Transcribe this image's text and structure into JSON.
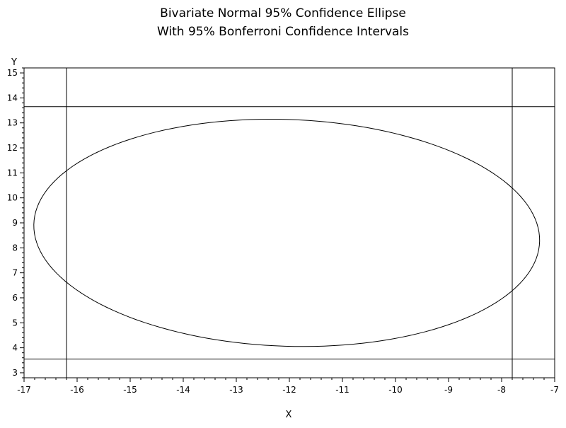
{
  "chart_data": {
    "type": "line",
    "title": [
      "Bivariate Normal 95% Confidence Ellipse",
      "With 95% Bonferroni Confidence Intervals"
    ],
    "xlabel": "X",
    "ylabel": "Y",
    "xlim": [
      -17,
      -7
    ],
    "ylim": [
      2.8,
      15.2
    ],
    "x_ticks": [
      "-17",
      "-16",
      "-15",
      "-14",
      "-13",
      "-12",
      "-11",
      "-10",
      "-9",
      "-8",
      "-7"
    ],
    "y_ticks": [
      "3",
      "4",
      "5",
      "6",
      "7",
      "8",
      "9",
      "10",
      "11",
      "12",
      "13",
      "14",
      "15"
    ],
    "x_tick_values": [
      -17,
      -16,
      -15,
      -14,
      -13,
      -12,
      -11,
      -10,
      -9,
      -8,
      -7
    ],
    "y_tick_values": [
      3,
      4,
      5,
      6,
      7,
      8,
      9,
      10,
      11,
      12,
      13,
      14,
      15
    ],
    "grid": false,
    "ellipse": {
      "center": [
        -12.05,
        8.6
      ],
      "semi_axes": [
        4.84,
        4.47
      ],
      "rotation_deg": -27
    },
    "bonferroni_intervals": {
      "x": [
        -16.2,
        -7.8
      ],
      "y": [
        3.55,
        13.65
      ]
    }
  }
}
